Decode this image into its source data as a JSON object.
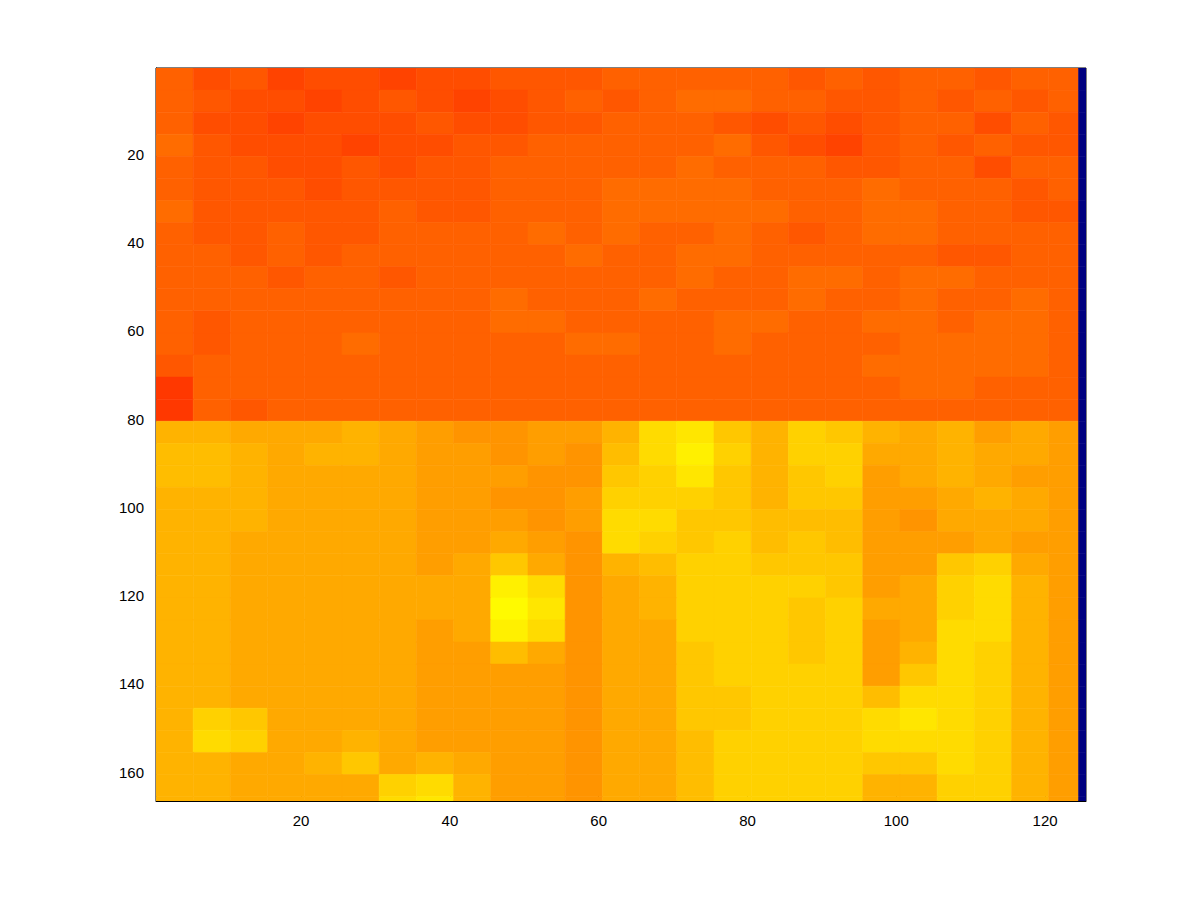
{
  "chart_data": {
    "type": "heatmap",
    "xlim": [
      0.5,
      125.5
    ],
    "ylim": [
      0.5,
      166.5
    ],
    "xticks": [
      20,
      40,
      60,
      80,
      100,
      120
    ],
    "yticks": [
      20,
      40,
      60,
      80,
      100,
      120,
      140,
      160
    ],
    "color_range": [
      0,
      100
    ],
    "x_edges": [
      0.5,
      5.5,
      10.5,
      15.5,
      20.5,
      25.5,
      30.5,
      35.5,
      40.5,
      45.5,
      50.5,
      55.5,
      60.5,
      65.5,
      70.5,
      75.5,
      80.5,
      85.5,
      90.5,
      95.5,
      100.5,
      105.5,
      110.5,
      115.5,
      120.5,
      124.5,
      125.5
    ],
    "y_edges": [
      0.5,
      5.5,
      10.5,
      15.5,
      20.5,
      25.5,
      30.5,
      35.5,
      40.5,
      45.5,
      50.5,
      55.5,
      60.5,
      65.5,
      70.5,
      75.5,
      80.5,
      85.5,
      90.5,
      95.5,
      100.5,
      105.5,
      110.5,
      115.5,
      120.5,
      125.5,
      130.5,
      135.5,
      140.5,
      145.5,
      150.5,
      155.5,
      160.5,
      165.5,
      166.5
    ],
    "cells": [
      [
        78,
        80,
        79,
        81,
        80,
        80,
        81,
        80,
        80,
        79,
        79,
        79,
        78,
        78,
        78,
        78,
        78,
        79,
        78,
        79,
        78,
        78,
        79,
        78,
        78,
        0
      ],
      [
        78,
        79,
        80,
        80,
        81,
        80,
        79,
        80,
        81,
        80,
        79,
        78,
        79,
        78,
        77,
        77,
        78,
        78,
        79,
        79,
        78,
        79,
        78,
        79,
        78,
        0
      ],
      [
        78,
        80,
        80,
        81,
        80,
        80,
        80,
        79,
        80,
        80,
        79,
        79,
        78,
        78,
        78,
        79,
        80,
        79,
        80,
        79,
        78,
        78,
        80,
        78,
        79,
        0
      ],
      [
        77,
        79,
        80,
        80,
        80,
        81,
        80,
        80,
        79,
        79,
        78,
        78,
        78,
        78,
        78,
        77,
        79,
        80,
        81,
        79,
        78,
        79,
        78,
        79,
        79,
        0
      ],
      [
        78,
        79,
        79,
        80,
        80,
        79,
        80,
        79,
        79,
        78,
        78,
        78,
        78,
        78,
        77,
        78,
        78,
        78,
        79,
        79,
        78,
        78,
        80,
        78,
        78,
        0
      ],
      [
        78,
        79,
        79,
        79,
        80,
        79,
        79,
        79,
        79,
        78,
        78,
        78,
        77,
        77,
        77,
        77,
        78,
        78,
        78,
        77,
        78,
        78,
        78,
        79,
        78,
        0
      ],
      [
        77,
        79,
        79,
        79,
        79,
        79,
        78,
        79,
        79,
        78,
        78,
        78,
        77,
        77,
        77,
        77,
        77,
        78,
        78,
        77,
        77,
        78,
        78,
        79,
        79,
        0
      ],
      [
        78,
        79,
        79,
        78,
        79,
        79,
        78,
        78,
        78,
        78,
        77,
        78,
        77,
        78,
        78,
        77,
        78,
        79,
        78,
        77,
        77,
        78,
        78,
        78,
        78,
        0
      ],
      [
        78,
        78,
        79,
        78,
        79,
        78,
        78,
        78,
        78,
        78,
        78,
        77,
        78,
        78,
        77,
        77,
        78,
        78,
        78,
        78,
        78,
        79,
        79,
        78,
        78,
        0
      ],
      [
        78,
        78,
        78,
        79,
        78,
        78,
        79,
        78,
        78,
        78,
        78,
        78,
        78,
        78,
        77,
        78,
        78,
        77,
        77,
        78,
        77,
        77,
        78,
        78,
        78,
        0
      ],
      [
        78,
        78,
        78,
        78,
        78,
        78,
        78,
        78,
        78,
        77,
        78,
        78,
        78,
        77,
        78,
        78,
        78,
        77,
        78,
        78,
        77,
        78,
        78,
        77,
        78,
        0
      ],
      [
        78,
        79,
        78,
        78,
        78,
        78,
        78,
        78,
        78,
        77,
        77,
        78,
        78,
        78,
        78,
        77,
        77,
        78,
        78,
        77,
        77,
        78,
        77,
        77,
        78,
        0
      ],
      [
        78,
        79,
        78,
        78,
        78,
        77,
        78,
        78,
        78,
        78,
        78,
        77,
        77,
        78,
        78,
        77,
        78,
        78,
        78,
        78,
        77,
        77,
        77,
        77,
        78,
        0
      ],
      [
        79,
        78,
        78,
        78,
        78,
        78,
        78,
        78,
        78,
        78,
        78,
        78,
        78,
        78,
        78,
        78,
        78,
        78,
        78,
        77,
        77,
        77,
        77,
        77,
        78,
        0
      ],
      [
        82,
        78,
        78,
        78,
        78,
        78,
        78,
        78,
        78,
        78,
        78,
        78,
        78,
        78,
        78,
        78,
        78,
        78,
        78,
        78,
        77,
        77,
        78,
        78,
        78,
        0
      ],
      [
        82,
        78,
        79,
        78,
        78,
        78,
        78,
        78,
        78,
        78,
        78,
        78,
        78,
        78,
        78,
        78,
        78,
        78,
        78,
        78,
        78,
        78,
        78,
        78,
        78,
        0
      ],
      [
        70,
        70,
        71,
        71,
        71,
        70,
        71,
        72,
        73,
        73,
        72,
        72,
        70,
        66,
        65,
        68,
        70,
        67,
        68,
        70,
        71,
        70,
        72,
        71,
        72,
        0
      ],
      [
        69,
        69,
        70,
        71,
        70,
        70,
        71,
        72,
        72,
        73,
        72,
        73,
        69,
        66,
        64,
        67,
        70,
        67,
        67,
        71,
        71,
        70,
        71,
        71,
        72,
        0
      ],
      [
        69,
        69,
        70,
        71,
        71,
        71,
        71,
        72,
        72,
        72,
        73,
        73,
        68,
        67,
        65,
        68,
        70,
        68,
        67,
        72,
        71,
        70,
        71,
        72,
        72,
        0
      ],
      [
        70,
        70,
        70,
        71,
        71,
        71,
        71,
        72,
        72,
        73,
        73,
        72,
        67,
        67,
        67,
        68,
        70,
        68,
        68,
        72,
        72,
        71,
        70,
        71,
        72,
        0
      ],
      [
        70,
        70,
        70,
        71,
        71,
        71,
        71,
        72,
        72,
        72,
        73,
        72,
        66,
        66,
        68,
        68,
        69,
        69,
        69,
        72,
        73,
        71,
        71,
        71,
        72,
        0
      ],
      [
        70,
        70,
        71,
        71,
        71,
        71,
        71,
        72,
        72,
        71,
        72,
        73,
        66,
        67,
        68,
        67,
        69,
        68,
        69,
        72,
        72,
        72,
        71,
        72,
        72,
        0
      ],
      [
        70,
        70,
        71,
        71,
        71,
        71,
        71,
        72,
        71,
        68,
        71,
        73,
        70,
        69,
        67,
        67,
        68,
        68,
        68,
        72,
        72,
        68,
        67,
        71,
        72,
        0
      ],
      [
        70,
        70,
        71,
        71,
        71,
        71,
        71,
        71,
        71,
        64,
        66,
        73,
        71,
        70,
        67,
        67,
        67,
        67,
        68,
        72,
        71,
        67,
        66,
        70,
        72,
        0
      ],
      [
        70,
        70,
        71,
        71,
        71,
        71,
        71,
        71,
        71,
        63,
        65,
        73,
        71,
        70,
        67,
        67,
        67,
        68,
        67,
        71,
        71,
        67,
        66,
        70,
        72,
        0
      ],
      [
        70,
        70,
        71,
        71,
        71,
        71,
        71,
        72,
        71,
        64,
        66,
        73,
        71,
        71,
        67,
        67,
        67,
        68,
        67,
        72,
        71,
        66,
        66,
        70,
        72,
        0
      ],
      [
        70,
        70,
        71,
        71,
        71,
        71,
        71,
        72,
        72,
        69,
        71,
        73,
        71,
        71,
        68,
        67,
        67,
        68,
        67,
        72,
        70,
        66,
        67,
        70,
        72,
        0
      ],
      [
        70,
        70,
        71,
        71,
        71,
        71,
        71,
        72,
        72,
        72,
        72,
        73,
        71,
        71,
        68,
        67,
        67,
        67,
        67,
        72,
        68,
        66,
        67,
        70,
        72,
        0
      ],
      [
        70,
        70,
        71,
        71,
        71,
        71,
        71,
        72,
        72,
        72,
        72,
        73,
        71,
        71,
        68,
        68,
        67,
        67,
        67,
        69,
        66,
        66,
        67,
        70,
        72,
        0
      ],
      [
        70,
        67,
        68,
        71,
        71,
        71,
        71,
        72,
        72,
        72,
        72,
        73,
        71,
        71,
        68,
        68,
        67,
        67,
        67,
        66,
        65,
        66,
        67,
        70,
        72,
        0
      ],
      [
        70,
        66,
        67,
        71,
        71,
        70,
        71,
        72,
        72,
        72,
        72,
        73,
        71,
        71,
        69,
        67,
        67,
        67,
        67,
        66,
        66,
        66,
        67,
        70,
        72,
        0
      ],
      [
        70,
        70,
        71,
        71,
        70,
        68,
        71,
        70,
        71,
        72,
        72,
        73,
        71,
        71,
        69,
        67,
        67,
        67,
        67,
        68,
        68,
        66,
        67,
        70,
        72,
        0
      ],
      [
        70,
        70,
        71,
        71,
        71,
        71,
        67,
        66,
        70,
        72,
        72,
        73,
        71,
        71,
        69,
        67,
        67,
        67,
        67,
        70,
        70,
        67,
        67,
        70,
        72,
        0
      ],
      [
        70,
        70,
        71,
        71,
        71,
        71,
        66,
        65,
        70,
        72,
        72,
        73,
        71,
        71,
        69,
        67,
        67,
        67,
        67,
        70,
        70,
        67,
        67,
        70,
        72,
        0
      ]
    ]
  }
}
